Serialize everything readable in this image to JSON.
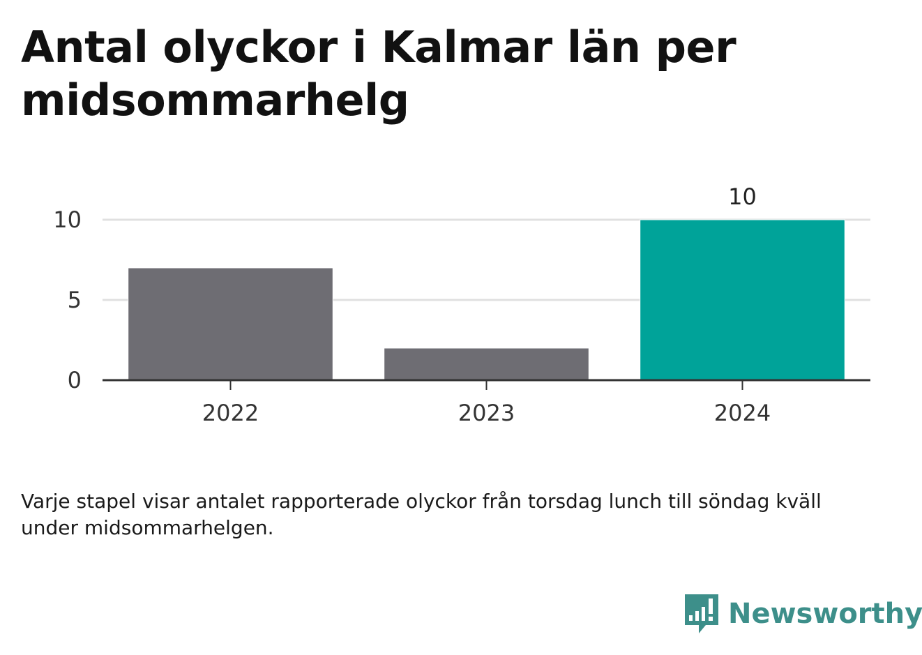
{
  "title": "Antal olyckor i Kalmar län per midsommarhelg",
  "note": "Varje stapel visar antalet rapporterade olyckor från torsdag lunch till söndag kväll under midsommarhelgen.",
  "brand": {
    "name": "Newsworthy",
    "icon": "newsworthy-logo-icon",
    "color": "#3d8f8a"
  },
  "chart_data": {
    "type": "bar",
    "categories": [
      "2022",
      "2023",
      "2024"
    ],
    "values": [
      7,
      2,
      10
    ],
    "colors": [
      "#6e6d73",
      "#6e6d73",
      "#00a399"
    ],
    "data_labels": [
      null,
      null,
      "10"
    ],
    "yticks": [
      0,
      5,
      10
    ],
    "ylim": [
      0,
      10
    ],
    "grid": true,
    "legend": "none"
  }
}
